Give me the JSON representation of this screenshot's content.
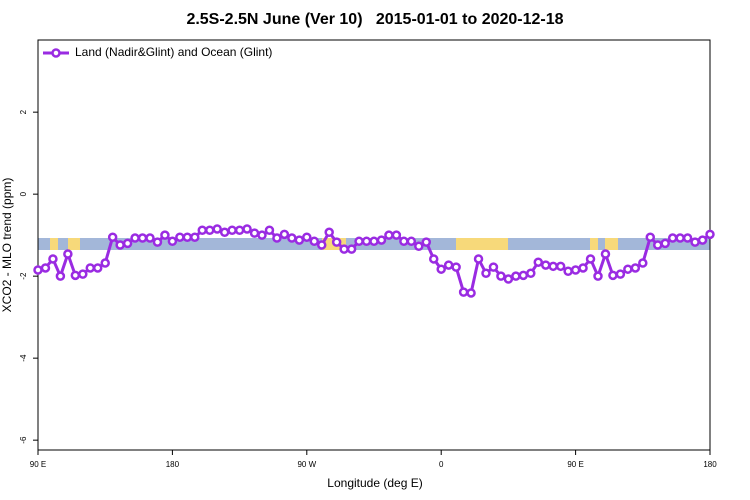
{
  "chart_data": {
    "type": "line",
    "title": "2.5S-2.5N June (Ver 10)   2015-01-01 to 2020-12-18",
    "x_label": "Longitude (deg E)",
    "y_label": "XCO2 - MLO trend (ppm)",
    "xlim": [
      90,
      540
    ],
    "ylim": [
      -6.24,
      3.76
    ],
    "xticks": [
      {
        "value": 90,
        "label": "90 E"
      },
      {
        "value": 180,
        "label": "180"
      },
      {
        "value": 270,
        "label": "90 W"
      },
      {
        "value": 360,
        "label": "0"
      },
      {
        "value": 450,
        "label": "90 E"
      },
      {
        "value": 540,
        "label": "180"
      }
    ],
    "yticks": [
      -6,
      -4,
      -2,
      0,
      2
    ],
    "legend": "top-left",
    "series": [
      {
        "name": "Land (Nadir&Glint) and Ocean (Glint)",
        "color": "#9a2be2",
        "x": [
          90,
          95,
          100,
          105,
          110,
          115,
          120,
          125,
          130,
          135,
          140,
          145,
          150,
          155,
          160,
          165,
          170,
          175,
          180,
          185,
          190,
          195,
          200,
          205,
          210,
          215,
          220,
          225,
          230,
          235,
          240,
          245,
          250,
          255,
          260,
          265,
          270,
          275,
          280,
          285,
          290,
          295,
          300,
          305,
          310,
          315,
          320,
          325,
          330,
          335,
          340,
          345,
          350,
          355,
          360,
          365,
          370,
          375,
          380,
          385,
          390,
          395,
          400,
          405,
          410,
          415,
          420,
          425,
          430,
          435,
          440,
          445,
          450,
          455,
          460,
          465,
          470,
          475,
          480,
          485,
          490,
          495,
          500,
          505,
          510,
          515,
          520,
          525,
          530,
          535,
          540
        ],
        "values": [
          -1.85,
          -1.8,
          -1.58,
          -2.0,
          -1.46,
          -1.98,
          -1.95,
          -1.8,
          -1.8,
          -1.68,
          -1.05,
          -1.24,
          -1.2,
          -1.07,
          -1.07,
          -1.07,
          -1.17,
          -1.0,
          -1.15,
          -1.05,
          -1.05,
          -1.05,
          -0.88,
          -0.88,
          -0.85,
          -0.93,
          -0.88,
          -0.88,
          -0.85,
          -0.95,
          -1.0,
          -0.88,
          -1.07,
          -0.98,
          -1.07,
          -1.12,
          -1.05,
          -1.15,
          -1.24,
          -0.93,
          -1.17,
          -1.34,
          -1.34,
          -1.15,
          -1.15,
          -1.15,
          -1.12,
          -1.0,
          -1.0,
          -1.15,
          -1.15,
          -1.27,
          -1.17,
          -1.58,
          -1.83,
          -1.73,
          -1.78,
          -2.39,
          -2.41,
          -1.58,
          -1.93,
          -1.78,
          -2.0,
          -2.07,
          -2.0,
          -1.98,
          -1.93,
          -1.66,
          -1.73,
          -1.76,
          -1.76,
          -1.88,
          -1.85,
          -1.8,
          -1.58,
          -2.0,
          -1.46,
          -1.98,
          -1.95,
          -1.83,
          -1.8,
          -1.68,
          -1.05,
          -1.24,
          -1.2,
          -1.07,
          -1.07,
          -1.07,
          -1.17,
          -1.12,
          -0.98
        ]
      }
    ]
  }
}
